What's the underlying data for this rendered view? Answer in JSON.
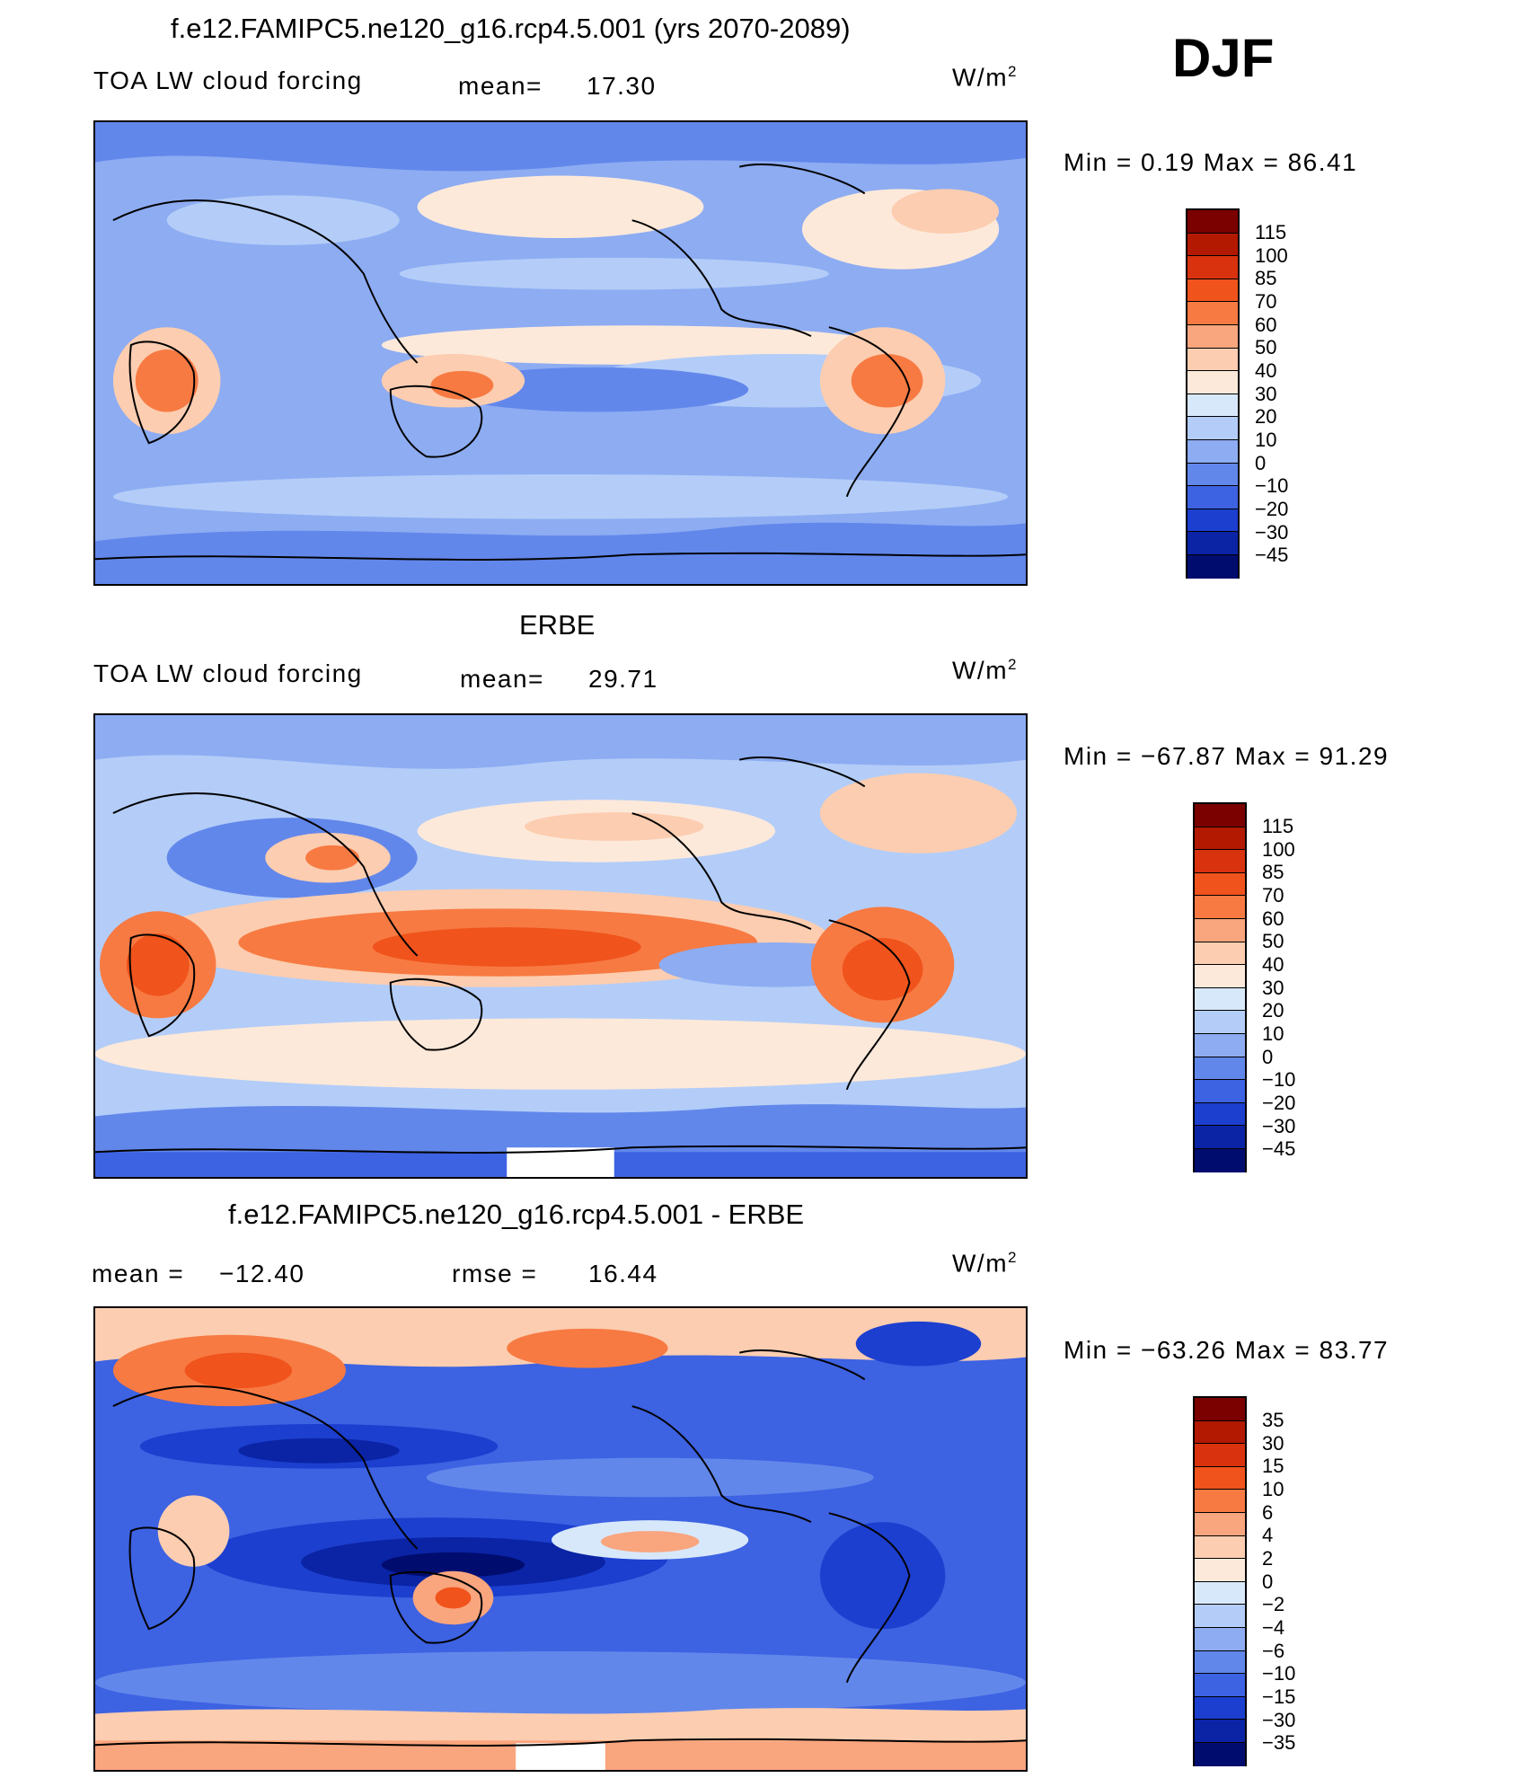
{
  "season": "DJF",
  "panels": [
    {
      "title": "f.e12.FAMIPC5.ne120_g16.rcp4.5.001 (yrs 2070-2089)",
      "variable": "TOA LW cloud forcing",
      "stat_left_label": "mean=",
      "stat_left_value": "17.30",
      "unit": "W/m",
      "unit_exp": "2",
      "minmax": "Min  =    0.19  Max  =   86.41",
      "levels": [
        "115",
        "100",
        "85",
        "70",
        "60",
        "50",
        "40",
        "30",
        "20",
        "10",
        "0",
        "−10",
        "−20",
        "−30",
        "−45"
      ],
      "colors": [
        "#7b0000",
        "#b31900",
        "#d9320f",
        "#f0531c",
        "#f77a42",
        "#f9a57e",
        "#fccdb0",
        "#fde9da",
        "#d8e8fb",
        "#b3cdf8",
        "#8dacf2",
        "#6287eb",
        "#3d62e2",
        "#1c3fcf",
        "#0a24a5",
        "#010c6f"
      ]
    },
    {
      "title": "ERBE",
      "variable": "TOA LW cloud forcing",
      "stat_left_label": "mean=",
      "stat_left_value": "29.71",
      "unit": "W/m",
      "unit_exp": "2",
      "minmax": "Min  = −67.87  Max  =   91.29",
      "levels": [
        "115",
        "100",
        "85",
        "70",
        "60",
        "50",
        "40",
        "30",
        "20",
        "10",
        "0",
        "−10",
        "−20",
        "−30",
        "−45"
      ],
      "colors": [
        "#7b0000",
        "#b31900",
        "#d9320f",
        "#f0531c",
        "#f77a42",
        "#f9a57e",
        "#fccdb0",
        "#fde9da",
        "#d8e8fb",
        "#b3cdf8",
        "#8dacf2",
        "#6287eb",
        "#3d62e2",
        "#1c3fcf",
        "#0a24a5",
        "#010c6f"
      ]
    },
    {
      "title": "f.e12.FAMIPC5.ne120_g16.rcp4.5.001 - ERBE",
      "stat_left_label": "mean  =",
      "stat_left_value": "−12.40",
      "stat_right_label": "rmse  =",
      "stat_right_value": "16.44",
      "unit": "W/m",
      "unit_exp": "2",
      "minmax": "Min  = −63.26  Max  =   83.77",
      "levels": [
        "35",
        "30",
        "15",
        "10",
        "6",
        "4",
        "2",
        "0",
        "−2",
        "−4",
        "−6",
        "−10",
        "−15",
        "−30",
        "−35"
      ],
      "colors": [
        "#7b0000",
        "#b31900",
        "#d9320f",
        "#f0531c",
        "#f77a42",
        "#f9a57e",
        "#fccdb0",
        "#fde9da",
        "#d8e8fb",
        "#b3cdf8",
        "#8dacf2",
        "#6287eb",
        "#3d62e2",
        "#1c3fcf",
        "#0a24a5",
        "#010c6f"
      ]
    }
  ]
}
